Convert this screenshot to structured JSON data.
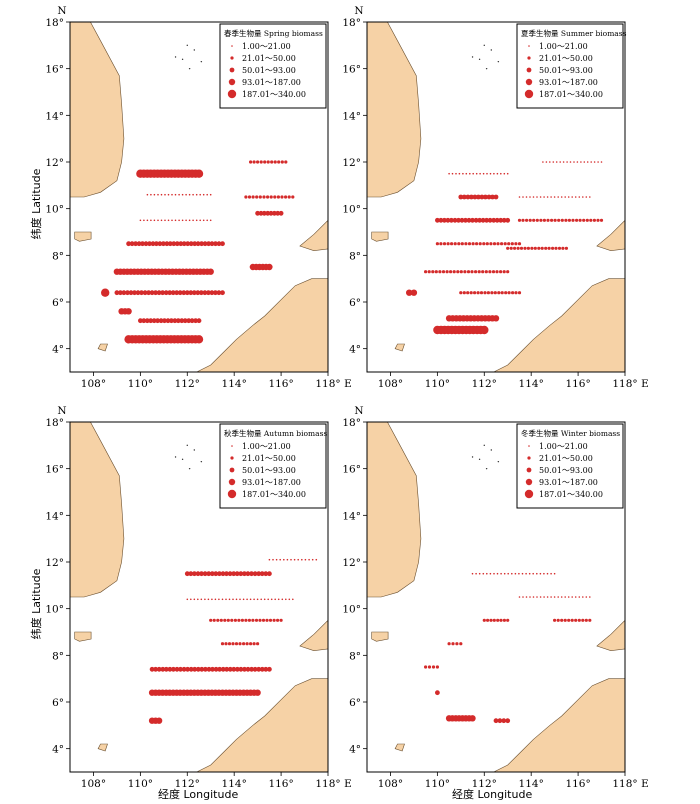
{
  "figure": {
    "axis_y_label": "纬度 Latitude",
    "axis_x_label": "经度 Longitude",
    "north_letter": "N",
    "east_letter": "E",
    "x_ticks": [
      "108°",
      "110°",
      "112°",
      "114°",
      "116°",
      "118°"
    ],
    "y_ticks": [
      "4°",
      "6°",
      "8°",
      "10°",
      "12°",
      "14°",
      "16°",
      "18°"
    ],
    "colors": {
      "land": "#f6d2a6",
      "coast": "#6b5030",
      "dot": "#d42b2b",
      "sea": "#ffffff"
    }
  },
  "legend_ranges": [
    "1.00～21.00",
    "21.01～50.00",
    "50.01～93.00",
    "93.01～187.00",
    "187.01～340.00"
  ],
  "panels": [
    {
      "id": "spring",
      "title": "春季生物量 Spring biomass"
    },
    {
      "id": "summer",
      "title": "夏季生物量 Summer biomass"
    },
    {
      "id": "autumn",
      "title": "秋季生物量 Autumn biomass"
    },
    {
      "id": "winter",
      "title": "冬季生物量 Winter biomass"
    }
  ],
  "chart_data": {
    "type": "scatter",
    "x_range": [
      107,
      118
    ],
    "y_range": [
      3,
      18
    ],
    "series": [
      {
        "name": "Spring",
        "transects": [
          [
            11.5,
            110.0,
            112.5,
            5
          ],
          [
            11.5,
            110.0,
            112.5,
            4
          ],
          [
            10.6,
            110.3,
            113.0,
            1
          ],
          [
            9.5,
            110.0,
            113.0,
            1
          ],
          [
            8.5,
            109.5,
            113.5,
            3
          ],
          [
            7.3,
            109.0,
            113.0,
            4
          ],
          [
            6.4,
            109.0,
            113.5,
            3
          ],
          [
            5.2,
            110.0,
            112.5,
            3
          ],
          [
            4.4,
            109.5,
            112.5,
            5
          ],
          [
            6.4,
            108.5,
            108.5,
            5
          ],
          [
            5.6,
            109.2,
            109.5,
            4
          ],
          [
            10.5,
            114.5,
            116.5,
            2
          ],
          [
            7.5,
            114.8,
            115.5,
            4
          ],
          [
            12.0,
            114.7,
            116.2,
            2
          ],
          [
            9.8,
            115.0,
            116.0,
            3
          ]
        ]
      },
      {
        "name": "Summer",
        "transects": [
          [
            11.5,
            110.5,
            113.0,
            1
          ],
          [
            10.5,
            111.0,
            112.5,
            3
          ],
          [
            9.5,
            110.0,
            113.0,
            3
          ],
          [
            8.5,
            110.0,
            113.5,
            2
          ],
          [
            7.3,
            109.5,
            113.0,
            2
          ],
          [
            6.4,
            111.0,
            113.5,
            2
          ],
          [
            5.3,
            110.5,
            112.5,
            4
          ],
          [
            4.8,
            110.0,
            112.0,
            5
          ],
          [
            6.4,
            108.8,
            109.0,
            4
          ],
          [
            10.5,
            113.5,
            116.5,
            1
          ],
          [
            9.5,
            113.5,
            117.0,
            2
          ],
          [
            12.0,
            114.5,
            117.0,
            1
          ],
          [
            8.3,
            113.0,
            115.5,
            2
          ]
        ]
      },
      {
        "name": "Autumn",
        "transects": [
          [
            11.5,
            112.0,
            115.5,
            3
          ],
          [
            10.4,
            112.0,
            116.5,
            1
          ],
          [
            9.5,
            113.0,
            116.0,
            2
          ],
          [
            8.5,
            113.5,
            115.0,
            2
          ],
          [
            7.4,
            110.5,
            115.5,
            3
          ],
          [
            6.4,
            110.5,
            115.0,
            4
          ],
          [
            5.2,
            110.5,
            110.8,
            4
          ],
          [
            12.1,
            115.5,
            117.5,
            1
          ]
        ]
      },
      {
        "name": "Winter",
        "transects": [
          [
            11.5,
            111.5,
            115.0,
            1
          ],
          [
            10.5,
            113.5,
            116.5,
            1
          ],
          [
            9.5,
            112.0,
            113.0,
            2
          ],
          [
            9.5,
            115.0,
            116.5,
            2
          ],
          [
            8.5,
            110.5,
            111.0,
            2
          ],
          [
            7.5,
            109.5,
            110.0,
            2
          ],
          [
            6.4,
            110.0,
            110.0,
            3
          ],
          [
            5.3,
            110.5,
            111.5,
            4
          ],
          [
            5.2,
            112.5,
            113.0,
            3
          ]
        ]
      }
    ]
  }
}
